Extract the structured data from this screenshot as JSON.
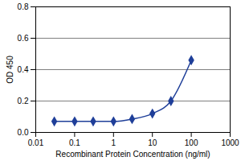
{
  "chart_data": {
    "type": "line",
    "x_label": "Recombinant Protein Concentration (ng/ml)",
    "y_label": "OD 450",
    "x": [
      0.03,
      0.1,
      0.3,
      1,
      3,
      10,
      30,
      100
    ],
    "values": [
      0.07,
      0.07,
      0.07,
      0.07,
      0.085,
      0.12,
      0.2,
      0.46
    ],
    "color": "#1f3f99",
    "marker": "diamond",
    "log": "x",
    "grid": true,
    "xlim": [
      0.01,
      1000
    ],
    "xticks": [
      0.01,
      0.1,
      1,
      10,
      100,
      1000
    ],
    "ylim": [
      0,
      0.8
    ],
    "yticks": [
      {
        "value": 0,
        "label": "0.0"
      },
      0.2,
      0.4,
      0.6,
      0.8
    ]
  }
}
